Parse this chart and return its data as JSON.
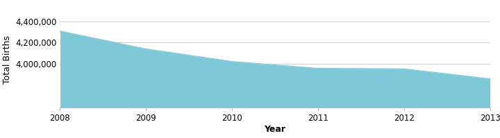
{
  "years": [
    2008,
    2009,
    2010,
    2011,
    2012,
    2013
  ],
  "values": [
    4310000,
    4140000,
    4020000,
    3955000,
    3950000,
    3855000
  ],
  "fill_color": "#7ec8d8",
  "fill_alpha": 1.0,
  "line_color": "#7ec8d8",
  "bg_color": "#ffffff",
  "grid_color": "#d0d0d0",
  "xlabel": "Year",
  "ylabel": "Total Births",
  "ylim_bottom": 3580000,
  "ylim_top": 4500000,
  "yticks": [
    4000000,
    4200000,
    4400000
  ],
  "xticks": [
    2008,
    2009,
    2010,
    2011,
    2012,
    2013
  ],
  "label_fontsize": 9,
  "tick_fontsize": 8.5,
  "spine_color": "#bbbbbb"
}
